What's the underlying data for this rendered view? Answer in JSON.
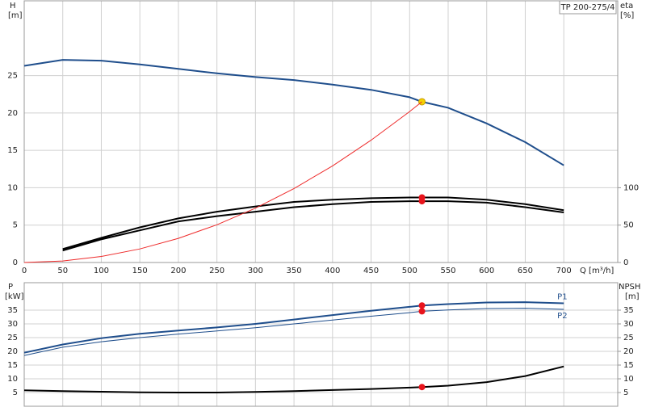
{
  "chart_data": [
    {
      "type": "line",
      "title": "TP 200-275/4",
      "y_label": "H",
      "y_unit": "[m]",
      "y2_label": "eta",
      "y2_unit": "[%]",
      "x_label": "Q [m³/h]",
      "xlim": [
        0,
        770
      ],
      "xticks": [
        0,
        50,
        100,
        150,
        200,
        250,
        300,
        350,
        400,
        450,
        500,
        550,
        600,
        650,
        700
      ],
      "ylim": [
        0,
        35
      ],
      "yticks": [
        0,
        5,
        10,
        15,
        20,
        25
      ],
      "y2lim": [
        0,
        350
      ],
      "y2ticks": [
        0,
        50,
        100
      ],
      "grid": true,
      "series": [
        {
          "color": "#1f4e8c",
          "width": 2,
          "axis": "y",
          "x": [
            0,
            50,
            100,
            150,
            200,
            250,
            300,
            350,
            400,
            450,
            500,
            516,
            550,
            600,
            650,
            700
          ],
          "values": [
            26.3,
            27.1,
            27.0,
            26.5,
            25.9,
            25.3,
            24.8,
            24.4,
            23.8,
            23.1,
            22.1,
            21.5,
            20.7,
            18.6,
            16.1,
            13.0
          ],
          "point": {
            "x": 516,
            "y": 21.5,
            "color": "#f5d300"
          }
        },
        {
          "color": "#000000",
          "width": 2,
          "axis": "y2",
          "x": [
            50,
            100,
            150,
            200,
            250,
            300,
            350,
            400,
            450,
            500,
            516,
            550,
            600,
            650,
            700
          ],
          "values": [
            18,
            33,
            47,
            59,
            68,
            75,
            81,
            84,
            86,
            87,
            87,
            87,
            84,
            78,
            70
          ],
          "point": {
            "x": 516,
            "y": 87,
            "color": "#e8141c"
          }
        },
        {
          "color": "#000000",
          "width": 2,
          "axis": "y2",
          "x": [
            50,
            100,
            150,
            200,
            250,
            300,
            350,
            400,
            450,
            500,
            516,
            550,
            600,
            650,
            700
          ],
          "values": [
            16,
            31,
            43,
            55,
            62,
            68,
            74,
            78,
            81,
            82,
            82,
            82,
            80,
            74,
            67
          ],
          "point": {
            "x": 516,
            "y": 82,
            "color": "#e8141c"
          }
        },
        {
          "color": "#ee2b2b",
          "width": 1,
          "axis": "y",
          "x": [
            0,
            50,
            100,
            150,
            200,
            250,
            300,
            350,
            400,
            450,
            500,
            516
          ],
          "values": [
            0,
            0.2,
            0.81,
            1.82,
            3.23,
            5.05,
            7.27,
            9.89,
            12.92,
            16.35,
            20.19,
            21.5
          ]
        }
      ]
    },
    {
      "type": "line",
      "y_label": "P",
      "y_unit": "[kW]",
      "y2_label": "NPSH",
      "y2_unit": "[m]",
      "xlim": [
        0,
        770
      ],
      "ylim": [
        0,
        45
      ],
      "yticks": [
        5,
        10,
        15,
        20,
        25,
        30,
        35
      ],
      "y2lim": [
        0,
        45
      ],
      "y2ticks": [
        5,
        10,
        15,
        20,
        25,
        30,
        35
      ],
      "grid": true,
      "series": [
        {
          "name": "P1",
          "color": "#1f4e8c",
          "width": 2,
          "axis": "y",
          "x": [
            0,
            50,
            100,
            150,
            200,
            250,
            300,
            350,
            400,
            450,
            500,
            516,
            550,
            600,
            650,
            700
          ],
          "values": [
            19.5,
            22.5,
            24.8,
            26.4,
            27.6,
            28.7,
            30,
            31.6,
            33.2,
            34.8,
            36.2,
            36.7,
            37.2,
            37.8,
            37.9,
            37.5
          ],
          "point": {
            "x": 516,
            "y": 36.7,
            "color": "#e8141c"
          }
        },
        {
          "name": "P2",
          "color": "#1f4e8c",
          "width": 1,
          "axis": "y",
          "x": [
            0,
            50,
            100,
            150,
            200,
            250,
            300,
            350,
            400,
            450,
            500,
            516,
            550,
            600,
            650,
            700
          ],
          "values": [
            18.5,
            21.5,
            23.5,
            25,
            26.3,
            27.4,
            28.6,
            30,
            31.4,
            32.8,
            34.1,
            34.6,
            35.1,
            35.6,
            35.7,
            35.3
          ],
          "point": {
            "x": 516,
            "y": 34.6,
            "color": "#e8141c"
          }
        },
        {
          "color": "#000000",
          "width": 2,
          "axis": "y2",
          "x": [
            0,
            50,
            100,
            150,
            200,
            250,
            300,
            350,
            400,
            450,
            500,
            516,
            550,
            600,
            650,
            700
          ],
          "values": [
            5.8,
            5.5,
            5.3,
            5.1,
            5.0,
            5.0,
            5.2,
            5.5,
            5.9,
            6.3,
            6.8,
            7.0,
            7.5,
            8.8,
            11,
            14.5
          ],
          "point": {
            "x": 516,
            "y": 7.0,
            "color": "#e8141c"
          }
        }
      ]
    }
  ]
}
